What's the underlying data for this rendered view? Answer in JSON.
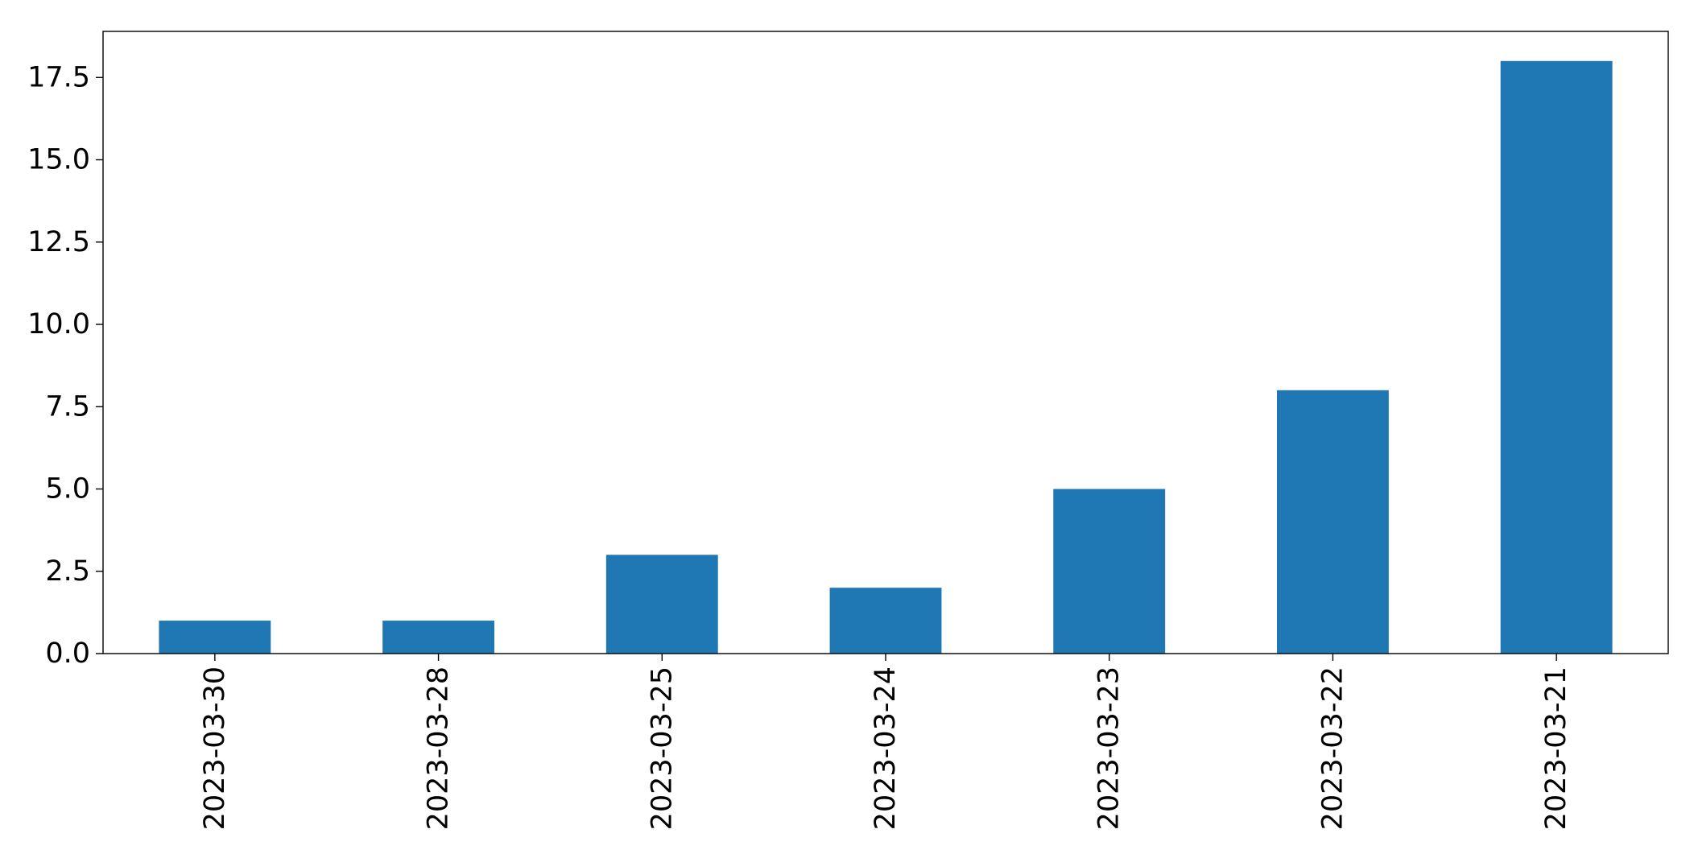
{
  "chart_data": {
    "type": "bar",
    "title": "",
    "xlabel": "",
    "ylabel": "",
    "categories": [
      "2023-03-30",
      "2023-03-28",
      "2023-03-25",
      "2023-03-24",
      "2023-03-23",
      "2023-03-22",
      "2023-03-21"
    ],
    "values": [
      1,
      1,
      3,
      2,
      5,
      8,
      18
    ],
    "ylim": [
      0,
      18.9
    ],
    "yticks": [
      "0.0",
      "2.5",
      "5.0",
      "7.5",
      "10.0",
      "12.5",
      "15.0",
      "17.5"
    ],
    "ytick_values": [
      0,
      2.5,
      5,
      7.5,
      10,
      12.5,
      15,
      17.5
    ],
    "grid": false,
    "legend": "none",
    "bar_color": "#1f77b4",
    "xtick_rotation": "vertical"
  }
}
